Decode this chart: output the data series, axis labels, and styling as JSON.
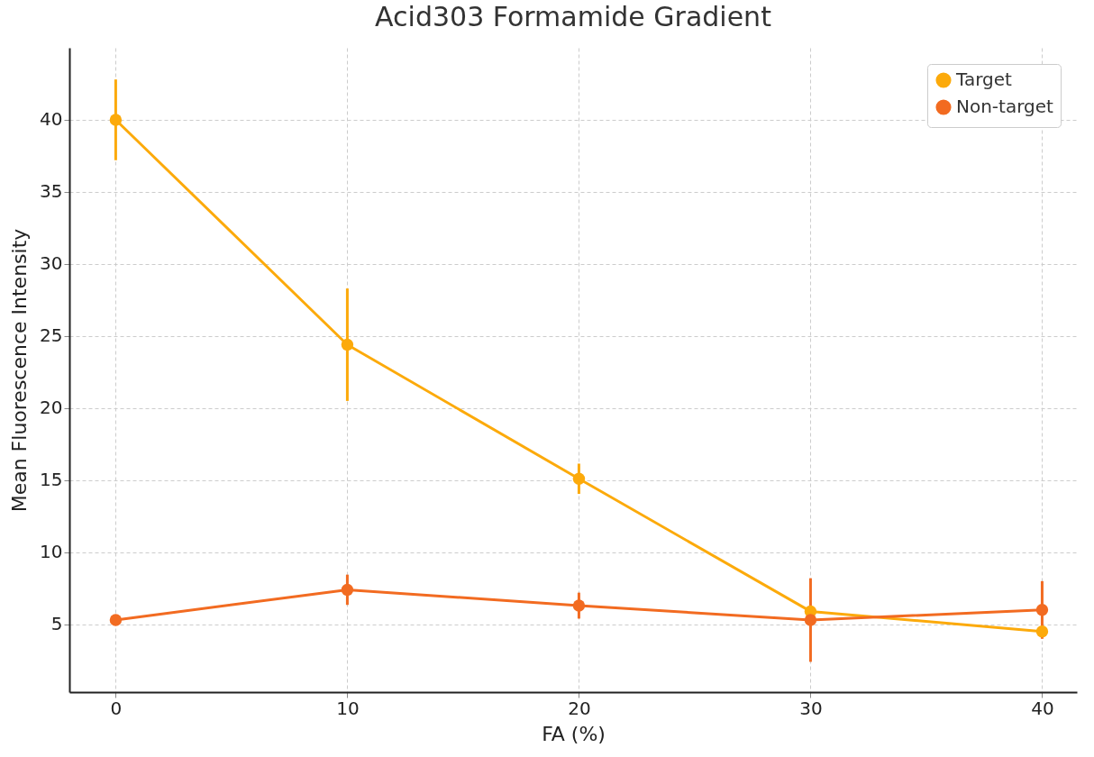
{
  "chart_data": {
    "type": "line",
    "title": "Acid303     Formamide Gradient",
    "xlabel": "FA (%)",
    "ylabel": "Mean Fluorescence Intensity",
    "x": [
      0,
      10,
      20,
      30,
      40
    ],
    "series": [
      {
        "name": "Target",
        "color": "#fcaa0b",
        "values": [
          40.0,
          24.4,
          15.1,
          5.9,
          4.5
        ],
        "errors": [
          2.8,
          3.9,
          1.05,
          null,
          null
        ]
      },
      {
        "name": "Non-target",
        "color": "#f26b21",
        "values": [
          5.3,
          7.4,
          6.3,
          5.3,
          6.0
        ],
        "errors": [
          null,
          1.05,
          0.9,
          2.9,
          2.0
        ]
      }
    ],
    "xlim": [
      -2,
      41.5
    ],
    "ylim": [
      0.3,
      45
    ],
    "xticks": [
      0,
      10,
      20,
      30,
      40
    ],
    "yticks": [
      5,
      10,
      15,
      20,
      25,
      30,
      35,
      40
    ],
    "grid": true,
    "legend": "top right",
    "marker": "circle",
    "line_style": "solid"
  }
}
